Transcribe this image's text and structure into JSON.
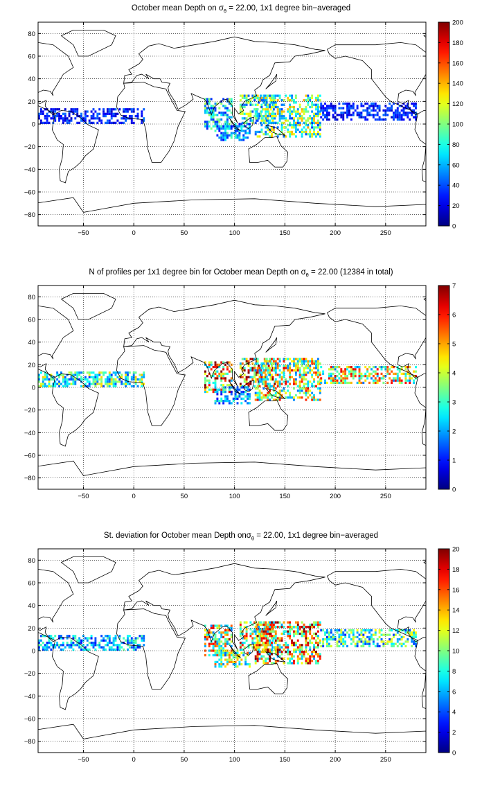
{
  "chart_data": [
    {
      "type": "heatmap",
      "title_prefix": "October mean Depth on ",
      "title_symbol": "σ",
      "title_subscript": "θ",
      "title_suffix": " = 22.00, 1x1 degree bin−averaged",
      "xlim": [
        -95,
        290
      ],
      "ylim": [
        -90,
        90
      ],
      "x_ticks": [
        -50,
        0,
        50,
        100,
        150,
        200,
        250
      ],
      "y_ticks": [
        -80,
        -60,
        -40,
        -20,
        0,
        20,
        40,
        60,
        80
      ],
      "grid": true,
      "colorbar": {
        "min": 0,
        "max": 200,
        "ticks": [
          0,
          20,
          40,
          60,
          80,
          100,
          120,
          140,
          160,
          180,
          200
        ]
      },
      "regions": [
        {
          "name": "tropical-atlantic",
          "lon": [
            -95,
            10
          ],
          "lat": [
            0,
            13
          ],
          "value": 30
        },
        {
          "name": "arabian-bengal",
          "lon": [
            70,
            98
          ],
          "lat": [
            -5,
            22
          ],
          "value": 70
        },
        {
          "name": "south-china-sea-philippines",
          "lon": [
            105,
            140
          ],
          "lat": [
            0,
            25
          ],
          "value": 80
        },
        {
          "name": "west-pacific-warm-pool",
          "lon": [
            120,
            185
          ],
          "lat": [
            -12,
            25
          ],
          "value": 90
        },
        {
          "name": "east-pacific-band",
          "lon": [
            185,
            280
          ],
          "lat": [
            3,
            18
          ],
          "value": 30
        },
        {
          "name": "eastern-indian-ocean",
          "lon": [
            80,
            115
          ],
          "lat": [
            -15,
            0
          ],
          "value": 60
        }
      ]
    },
    {
      "type": "heatmap",
      "title_prefix": "N of profiles per 1x1 degree bin for October mean Depth on ",
      "title_symbol": "σ",
      "title_subscript": "θ",
      "title_suffix": " = 22.00 (12384 in total)",
      "xlim": [
        -95,
        290
      ],
      "ylim": [
        -90,
        90
      ],
      "x_ticks": [
        -50,
        0,
        50,
        100,
        150,
        200,
        250
      ],
      "y_ticks": [
        -80,
        -60,
        -40,
        -20,
        0,
        20,
        40,
        60,
        80
      ],
      "grid": true,
      "colorbar": {
        "min": 0,
        "max": 7,
        "ticks": [
          0,
          1,
          2,
          3,
          4,
          5,
          6,
          7
        ]
      },
      "regions": [
        {
          "name": "tropical-atlantic",
          "lon": [
            -95,
            10
          ],
          "lat": [
            0,
            13
          ],
          "value": 3
        },
        {
          "name": "arabian-bengal",
          "lon": [
            70,
            98
          ],
          "lat": [
            -5,
            22
          ],
          "value": 5
        },
        {
          "name": "south-china-sea-philippines",
          "lon": [
            105,
            140
          ],
          "lat": [
            0,
            25
          ],
          "value": 5
        },
        {
          "name": "west-pacific-warm-pool",
          "lon": [
            120,
            185
          ],
          "lat": [
            -12,
            25
          ],
          "value": 4
        },
        {
          "name": "east-pacific-band",
          "lon": [
            185,
            280
          ],
          "lat": [
            3,
            18
          ],
          "value": 4
        },
        {
          "name": "eastern-indian-ocean",
          "lon": [
            80,
            115
          ],
          "lat": [
            -15,
            0
          ],
          "value": 2
        }
      ]
    },
    {
      "type": "heatmap",
      "title_prefix": "St. deviation for October mean Depth on",
      "title_symbol": "σ",
      "title_subscript": "θ",
      "title_suffix": " = 22.00, 1x1 degree bin−averaged",
      "xlim": [
        -95,
        290
      ],
      "ylim": [
        -90,
        90
      ],
      "x_ticks": [
        -50,
        0,
        50,
        100,
        150,
        200,
        250
      ],
      "y_ticks": [
        -80,
        -60,
        -40,
        -20,
        0,
        20,
        40,
        60,
        80
      ],
      "grid": true,
      "colorbar": {
        "min": 0,
        "max": 20,
        "ticks": [
          0,
          2,
          4,
          6,
          8,
          10,
          12,
          14,
          16,
          18,
          20
        ]
      },
      "regions": [
        {
          "name": "tropical-atlantic",
          "lon": [
            -95,
            10
          ],
          "lat": [
            0,
            13
          ],
          "value": 6
        },
        {
          "name": "arabian-bengal",
          "lon": [
            70,
            98
          ],
          "lat": [
            -5,
            22
          ],
          "value": 12
        },
        {
          "name": "south-china-sea-philippines",
          "lon": [
            105,
            140
          ],
          "lat": [
            0,
            25
          ],
          "value": 12
        },
        {
          "name": "west-pacific-warm-pool",
          "lon": [
            120,
            185
          ],
          "lat": [
            -12,
            25
          ],
          "value": 13
        },
        {
          "name": "east-pacific-band",
          "lon": [
            185,
            280
          ],
          "lat": [
            3,
            18
          ],
          "value": 8
        },
        {
          "name": "eastern-indian-ocean",
          "lon": [
            80,
            115
          ],
          "lat": [
            -15,
            0
          ],
          "value": 10
        }
      ]
    }
  ]
}
